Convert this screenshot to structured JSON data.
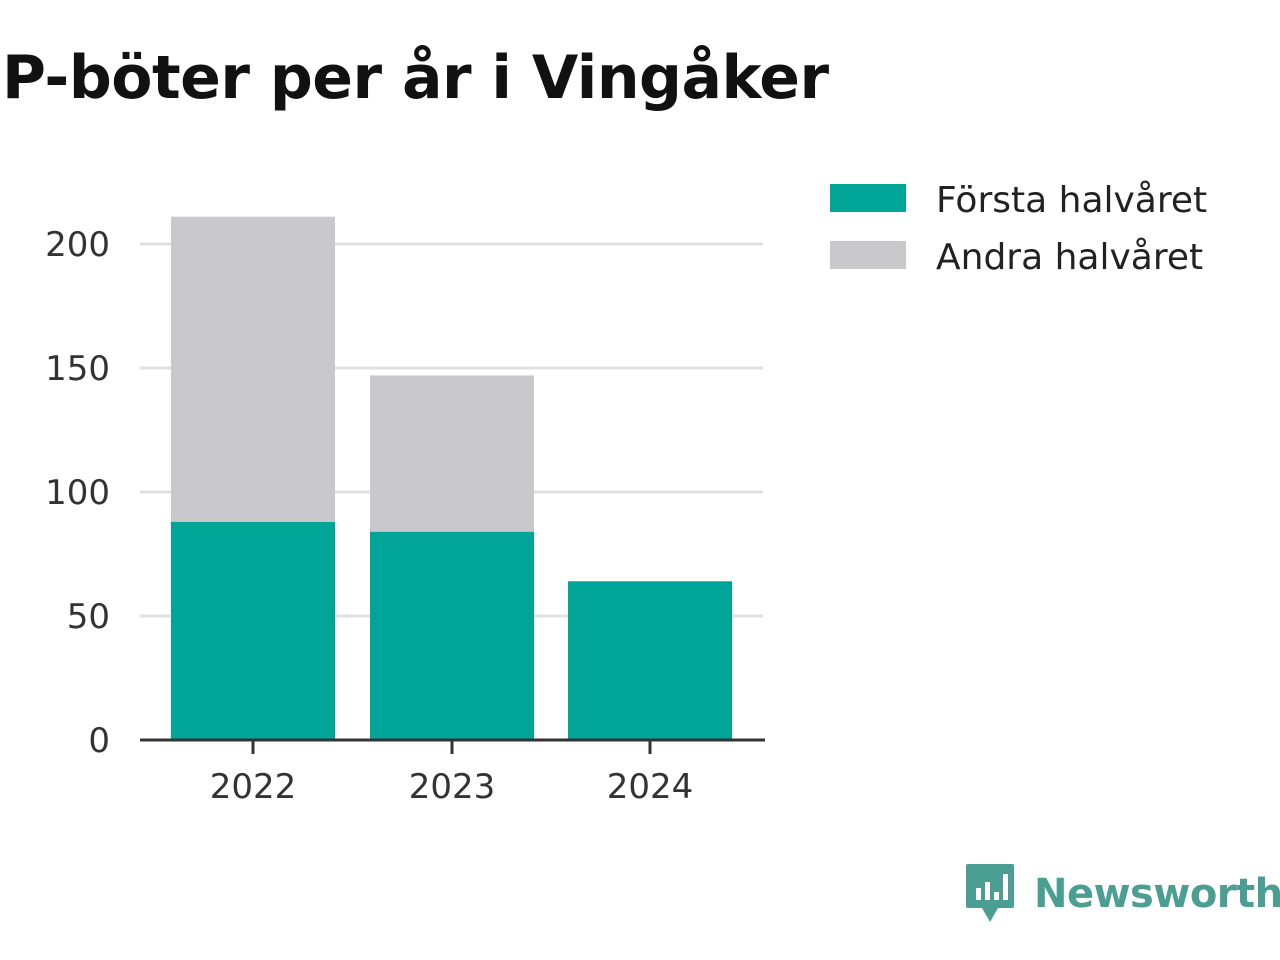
{
  "title": "P-böter per år i Vingåker",
  "brand": {
    "name": "Newsworthy",
    "color": "#4a9e92",
    "icon": "bar-chart-speech-bubble-icon"
  },
  "colors": {
    "series_0": "#00a598",
    "series_1": "#c8c8cd",
    "gridline": "#e0e0e0",
    "axis": "#333333"
  },
  "chart_data": {
    "type": "bar",
    "stacked": true,
    "categories": [
      "2022",
      "2023",
      "2024"
    ],
    "series": [
      {
        "name": "Första halvåret",
        "values": [
          88,
          84,
          64
        ]
      },
      {
        "name": "Andra halvåret",
        "values": [
          123,
          63,
          0
        ]
      }
    ],
    "title": "P-böter per år i Vingåker",
    "xlabel": "",
    "ylabel": "",
    "ylim": [
      0,
      210
    ],
    "yticks": [
      0,
      50,
      100,
      150,
      200
    ],
    "grid": "horizontal",
    "legend": "top-right"
  }
}
